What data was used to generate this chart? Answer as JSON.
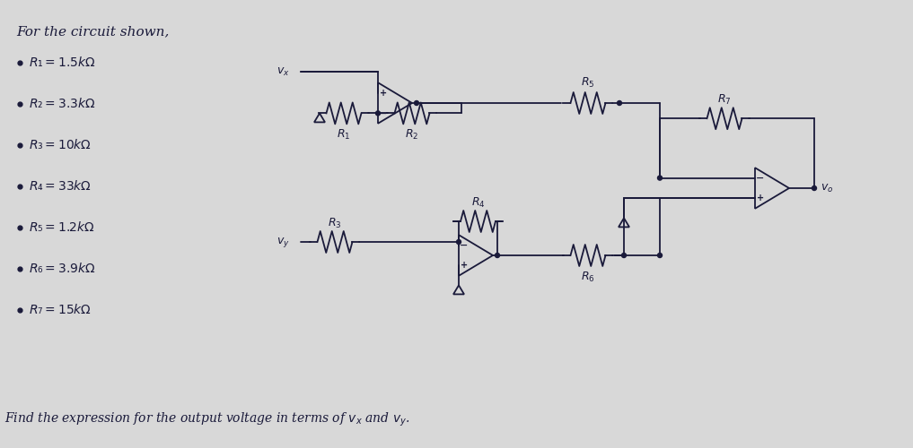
{
  "bg_color": "#d8d8d8",
  "line_color": "#1a1a3a",
  "text_color": "#1a1a3a",
  "title_text": "For the circuit shown,",
  "bullets": [
    "R₁ = 1.5 kΩ",
    "R₂ = 3.3 kΩ",
    "R₃ = 10 kΩ",
    "R₄ = 33 kΩ",
    "R₅ = 1.2 kΩ",
    "R₆ = 3.9 kΩ",
    "R₇ = 15 kΩ"
  ],
  "footer_text": "Find the expression for the output voltage in terms of $v_x$ and $v_y$.",
  "font_size_title": 11,
  "font_size_bullet": 10,
  "font_size_footer": 10,
  "font_size_label": 9
}
